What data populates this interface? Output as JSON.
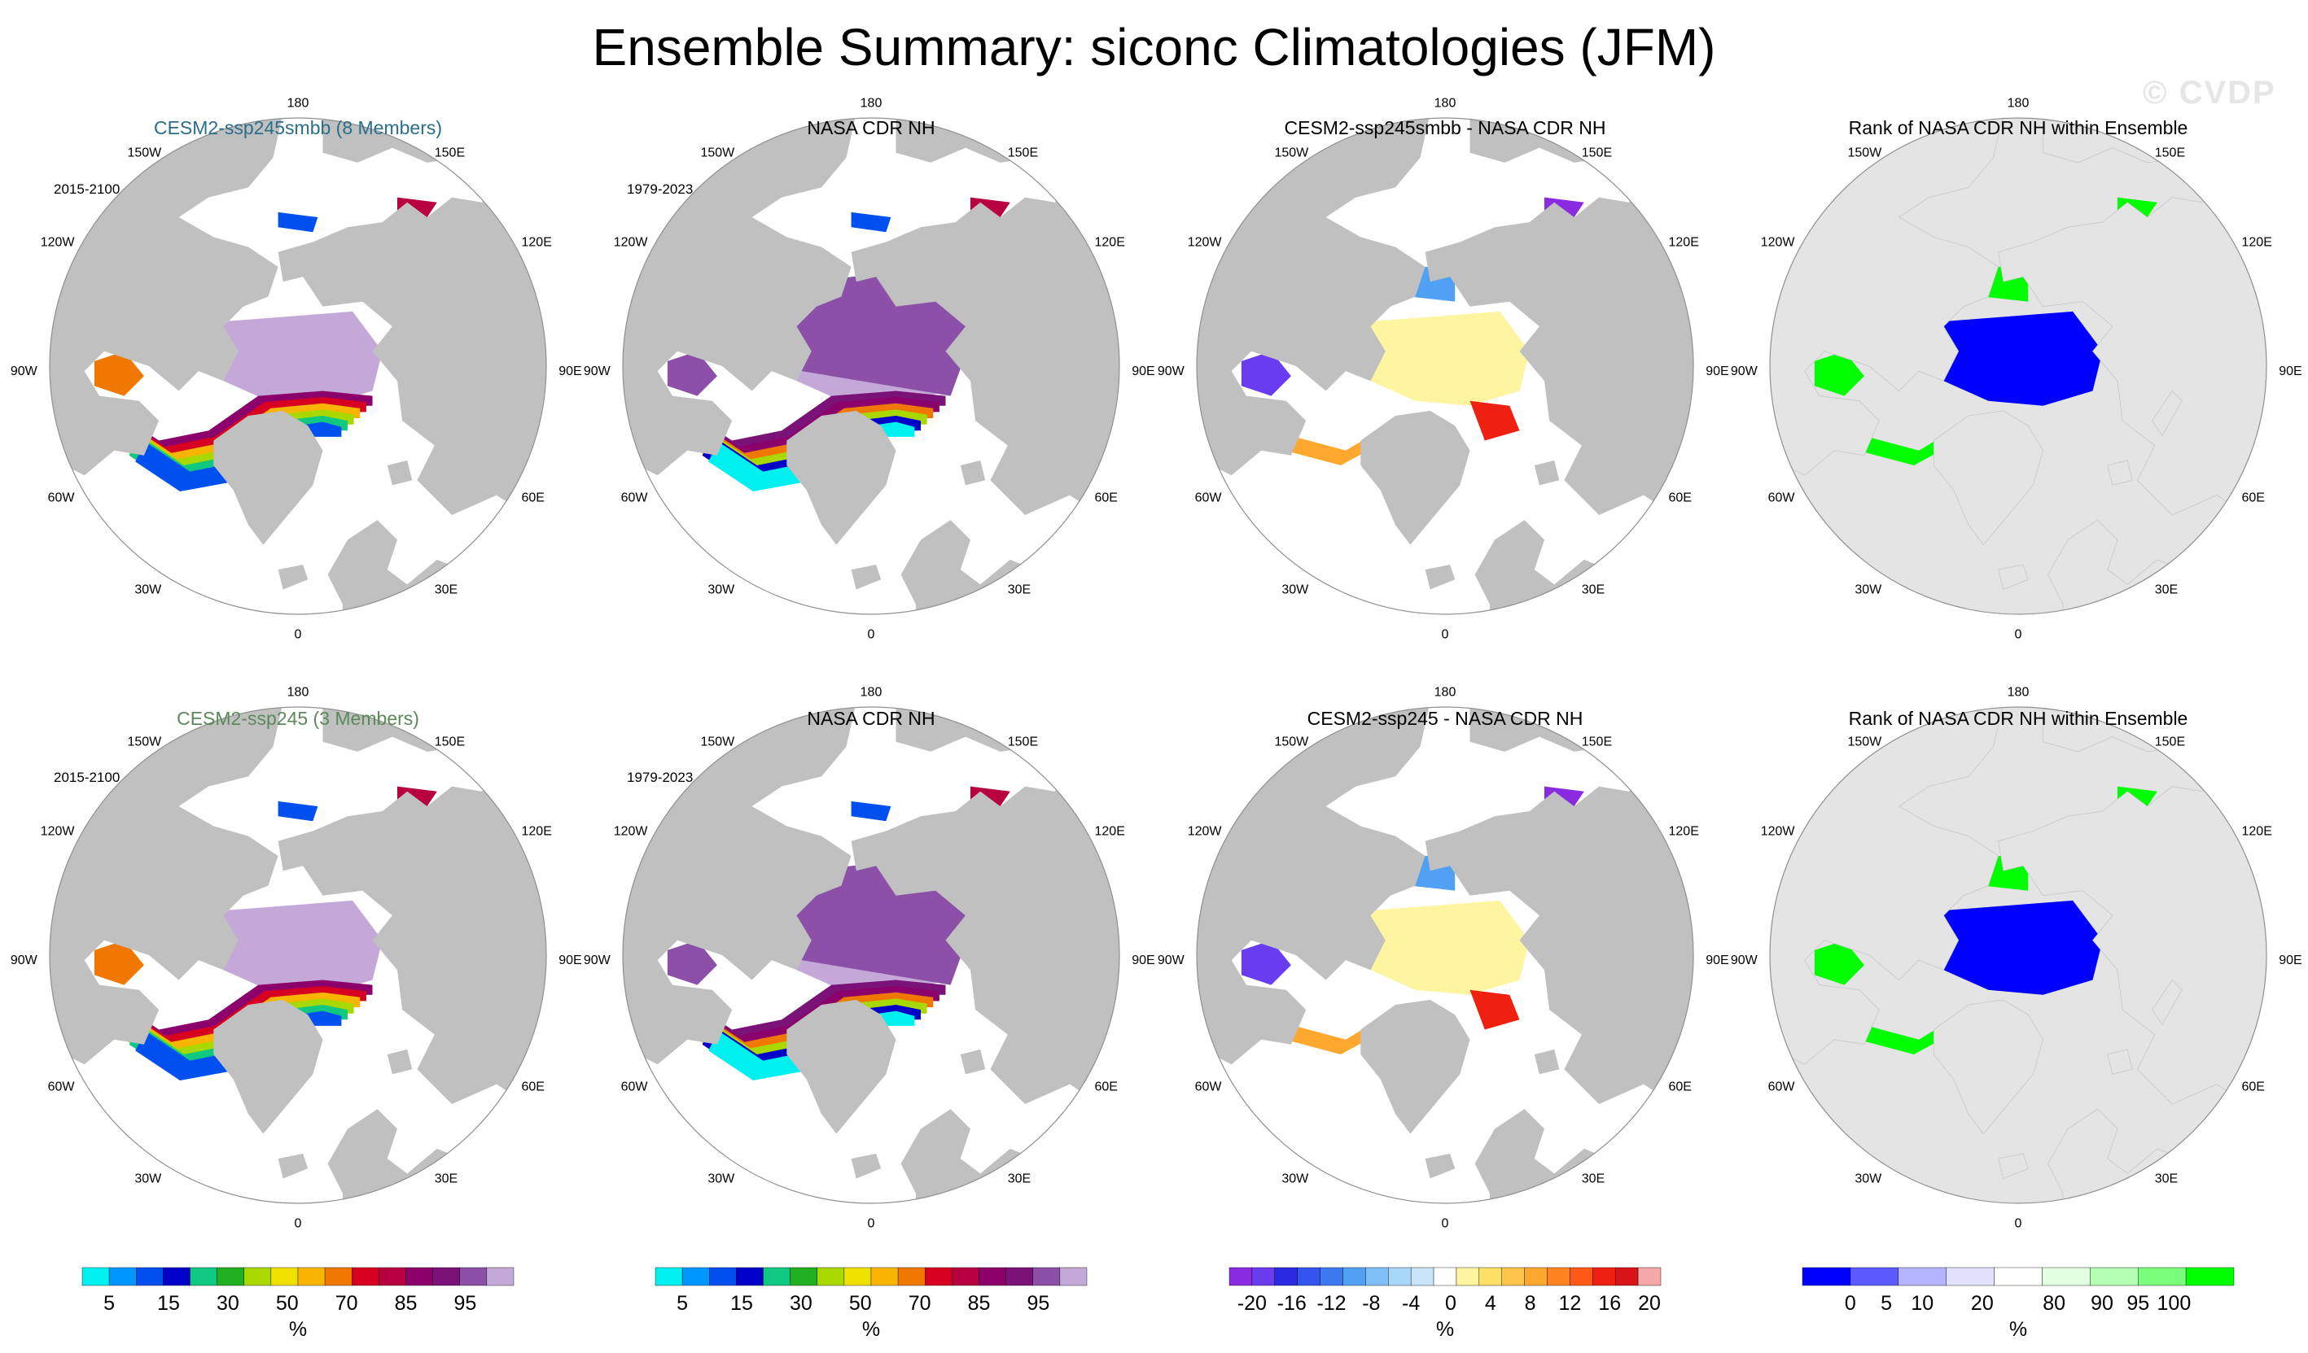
{
  "title": "Ensemble Summary: siconc Climatologies (JFM)",
  "watermark": "© CVDP",
  "colors": {
    "land": "#c0c0c0",
    "ocean": "#ffffff",
    "rank_background": "#e4e4e4",
    "title_smbb": "#2b6e8a",
    "title_ssp245": "#5a8a5a",
    "siconc_scale": [
      "#00f0f0",
      "#0096ff",
      "#0050f0",
      "#0000c8",
      "#10c880",
      "#20b020",
      "#a8d800",
      "#f0e000",
      "#f8b400",
      "#f07800",
      "#d80020",
      "#b80040",
      "#8c006c",
      "#7a1278",
      "#8c50a8",
      "#c4a8d8"
    ],
    "diff_scale": [
      "#8a2be2",
      "#6a3cf0",
      "#2a2ae0",
      "#3355ee",
      "#3c78f0",
      "#50a0f4",
      "#80c0f8",
      "#a8d8f8",
      "#c8e4f8",
      "#ffffff",
      "#fff4a0",
      "#ffe066",
      "#ffc44a",
      "#ffa830",
      "#ff8420",
      "#ff5a14",
      "#f02010",
      "#d81418",
      "#f4a8a8"
    ],
    "rank_scale": [
      "#0000ff",
      "#5a5aff",
      "#b4b4ff",
      "#e2e2ff",
      "#ffffff",
      "#e2ffe2",
      "#b4ffb4",
      "#7aff7a",
      "#00ff00"
    ]
  },
  "panels": [
    {
      "title": "CESM2-ssp245smbb (8 Members)",
      "title_color": "#2b6e8a",
      "years": "2015-2100",
      "kind": "model"
    },
    {
      "title": "NASA CDR NH",
      "title_color": "#000000",
      "years": "1979-2023",
      "kind": "obs"
    },
    {
      "title": "CESM2-ssp245smbb - NASA CDR NH",
      "title_color": "#000000",
      "years": "",
      "kind": "diff"
    },
    {
      "title": "Rank of NASA CDR NH within Ensemble",
      "title_color": "#000000",
      "years": "",
      "kind": "rank"
    },
    {
      "title": "CESM2-ssp245 (3 Members)",
      "title_color": "#5a8a5a",
      "years": "2015-2100",
      "kind": "model"
    },
    {
      "title": "NASA CDR NH",
      "title_color": "#000000",
      "years": "1979-2023",
      "kind": "obs"
    },
    {
      "title": "CESM2-ssp245 - NASA CDR NH",
      "title_color": "#000000",
      "years": "",
      "kind": "diff"
    },
    {
      "title": "Rank of NASA CDR NH within Ensemble",
      "title_color": "#000000",
      "years": "",
      "kind": "rank"
    }
  ],
  "longitude_labels": {
    "top": "180",
    "bottom": "0",
    "upper_left": "150W",
    "upper_right": "150E",
    "mid_upper_left": "120W",
    "mid_upper_right": "120E",
    "left": "90W",
    "right": "90E",
    "mid_lower_left": "60W",
    "mid_lower_right": "60E",
    "lower_left": "30W",
    "lower_right": "30E"
  },
  "colorbars": [
    {
      "scale": "siconc",
      "labels": [
        "5",
        "15",
        "30",
        "50",
        "70",
        "85",
        "95"
      ],
      "unit": "%"
    },
    {
      "scale": "siconc",
      "labels": [
        "5",
        "15",
        "30",
        "50",
        "70",
        "85",
        "95"
      ],
      "unit": "%"
    },
    {
      "scale": "diff",
      "labels": [
        "-20",
        "-16",
        "-12",
        "-8",
        "-4",
        "0",
        "4",
        "8",
        "12",
        "16",
        "20"
      ],
      "unit": "%"
    },
    {
      "scale": "rank",
      "labels": [
        "0",
        "5",
        "10",
        "20",
        "80",
        "90",
        "95",
        "100"
      ],
      "unit": "%"
    }
  ]
}
